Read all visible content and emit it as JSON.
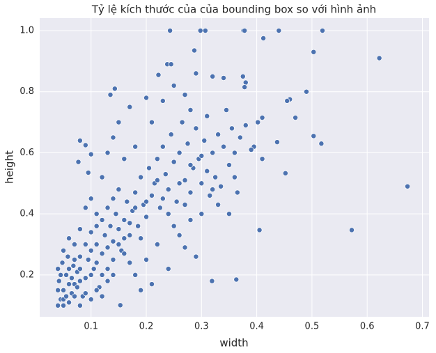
{
  "chart_data": {
    "type": "scatter",
    "title": "Tỷ lệ kích thước của của bounding box so với hình ảnh",
    "xlabel": "width",
    "ylabel": "height",
    "x": [
      0.243,
      0.298,
      0.307,
      0.376,
      0.378,
      0.44,
      0.519,
      0.412,
      0.503,
      0.622,
      0.673,
      0.572,
      0.405,
      0.49,
      0.46,
      0.455,
      0.47,
      0.503,
      0.517,
      0.437,
      0.452,
      0.41,
      0.363,
      0.319,
      0.287,
      0.238,
      0.245,
      0.222,
      0.29,
      0.32,
      0.375,
      0.38,
      0.378,
      0.34,
      0.143,
      0.135,
      0.41,
      0.402,
      0.395,
      0.08,
      0.09,
      0.077,
      0.095,
      0.1,
      0.153,
      0.04,
      0.045,
      0.05,
      0.042,
      0.055,
      0.06,
      0.065,
      0.07,
      0.075,
      0.048,
      0.058,
      0.068,
      0.08,
      0.085,
      0.09,
      0.095,
      0.1,
      0.105,
      0.11,
      0.115,
      0.12,
      0.125,
      0.13,
      0.135,
      0.14,
      0.145,
      0.15,
      0.155,
      0.16,
      0.165,
      0.17,
      0.175,
      0.18,
      0.185,
      0.19,
      0.195,
      0.2,
      0.205,
      0.21,
      0.215,
      0.22,
      0.225,
      0.23,
      0.235,
      0.24,
      0.245,
      0.25,
      0.255,
      0.26,
      0.265,
      0.27,
      0.275,
      0.28,
      0.285,
      0.29,
      0.295,
      0.3,
      0.305,
      0.31,
      0.315,
      0.32,
      0.325,
      0.33,
      0.335,
      0.34,
      0.345,
      0.35,
      0.355,
      0.36,
      0.365,
      0.37,
      0.38,
      0.39,
      0.2,
      0.22,
      0.25,
      0.27,
      0.3,
      0.29,
      0.24,
      0.21,
      0.18,
      0.19,
      0.26,
      0.28,
      0.33,
      0.36,
      0.35,
      0.1,
      0.12,
      0.13,
      0.14,
      0.15,
      0.16,
      0.17,
      0.18,
      0.2,
      0.21,
      0.23,
      0.25,
      0.27,
      0.28,
      0.11,
      0.09,
      0.08,
      0.07,
      0.06,
      0.05,
      0.1,
      0.11,
      0.12,
      0.13,
      0.14,
      0.15,
      0.12,
      0.13,
      0.14,
      0.15,
      0.16,
      0.17,
      0.09,
      0.08,
      0.07,
      0.06,
      0.05,
      0.1,
      0.11,
      0.16,
      0.17,
      0.18,
      0.19,
      0.2,
      0.22,
      0.23,
      0.24,
      0.26,
      0.27,
      0.28,
      0.3,
      0.31,
      0.32,
      0.08,
      0.09,
      0.1,
      0.11,
      0.12,
      0.13,
      0.14,
      0.04,
      0.04,
      0.045,
      0.05,
      0.055,
      0.06,
      0.065,
      0.07,
      0.075,
      0.08
    ],
    "values": [
      1.0,
      1.0,
      1.0,
      1.0,
      1.0,
      1.0,
      1.0,
      0.975,
      0.93,
      0.91,
      0.49,
      0.347,
      0.347,
      0.8,
      0.775,
      0.77,
      0.715,
      0.655,
      0.63,
      0.635,
      0.533,
      0.58,
      0.185,
      0.18,
      0.935,
      0.89,
      0.89,
      0.855,
      0.86,
      0.85,
      0.85,
      0.83,
      0.815,
      0.845,
      0.81,
      0.79,
      0.715,
      0.7,
      0.62,
      0.64,
      0.625,
      0.57,
      0.535,
      0.595,
      0.101,
      0.1,
      0.12,
      0.15,
      0.18,
      0.2,
      0.11,
      0.14,
      0.17,
      0.21,
      0.24,
      0.26,
      0.23,
      0.1,
      0.13,
      0.19,
      0.25,
      0.28,
      0.22,
      0.3,
      0.16,
      0.27,
      0.33,
      0.29,
      0.36,
      0.31,
      0.4,
      0.35,
      0.28,
      0.38,
      0.44,
      0.33,
      0.41,
      0.47,
      0.36,
      0.52,
      0.43,
      0.39,
      0.55,
      0.46,
      0.5,
      0.58,
      0.42,
      0.62,
      0.53,
      0.48,
      0.66,
      0.57,
      0.44,
      0.6,
      0.7,
      0.51,
      0.63,
      0.47,
      0.55,
      0.68,
      0.58,
      0.5,
      0.64,
      0.72,
      0.46,
      0.6,
      0.52,
      0.66,
      0.49,
      0.62,
      0.74,
      0.56,
      0.68,
      0.6,
      0.47,
      0.65,
      0.69,
      0.61,
      0.25,
      0.3,
      0.36,
      0.29,
      0.4,
      0.26,
      0.22,
      0.17,
      0.2,
      0.15,
      0.33,
      0.38,
      0.43,
      0.52,
      0.4,
      0.45,
      0.52,
      0.6,
      0.65,
      0.7,
      0.58,
      0.75,
      0.62,
      0.78,
      0.7,
      0.77,
      0.82,
      0.79,
      0.74,
      0.4,
      0.42,
      0.35,
      0.3,
      0.32,
      0.28,
      0.2,
      0.24,
      0.2,
      0.22,
      0.25,
      0.3,
      0.38,
      0.42,
      0.45,
      0.48,
      0.27,
      0.24,
      0.3,
      0.26,
      0.13,
      0.22,
      0.12,
      0.34,
      0.36,
      0.32,
      0.37,
      0.42,
      0.32,
      0.44,
      0.51,
      0.45,
      0.4,
      0.5,
      0.43,
      0.56,
      0.59,
      0.54,
      0.48,
      0.18,
      0.14,
      0.12,
      0.15,
      0.13,
      0.18,
      0.2,
      0.15,
      0.22,
      0.2,
      0.1,
      0.13,
      0.17,
      0.19,
      0.25,
      0.16,
      0.22
    ],
    "color": "#4c72b0",
    "xlim": [
      0.007,
      0.712
    ],
    "ylim": [
      0.063,
      1.041
    ],
    "xticks": [
      0.1,
      0.2,
      0.3,
      0.4,
      0.5,
      0.6,
      0.7
    ],
    "yticks": [
      0.2,
      0.4,
      0.6,
      0.8,
      {
        "value": 1,
        "label": "1.0"
      }
    ],
    "grid": true
  }
}
